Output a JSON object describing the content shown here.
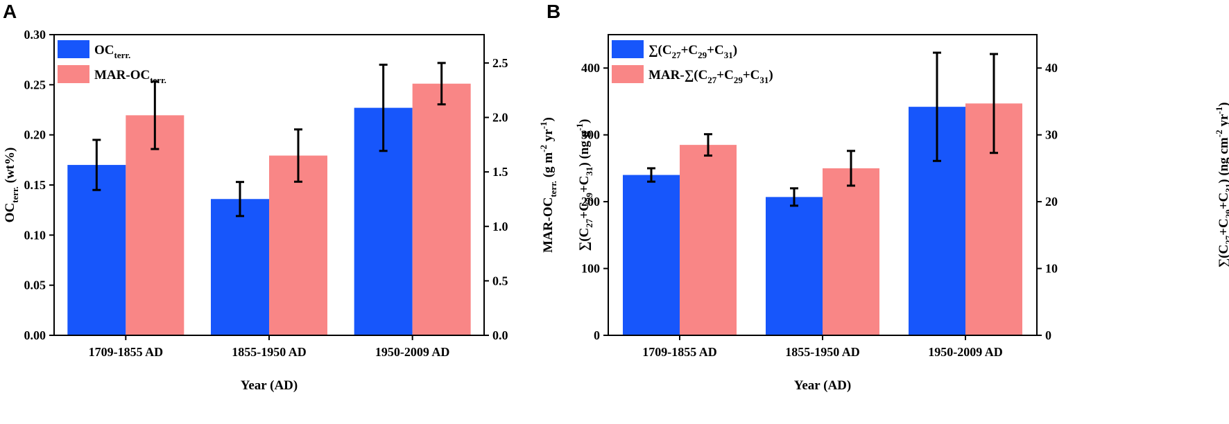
{
  "chart_data": [
    {
      "panel": "A",
      "type": "bar",
      "xlabel": "Year (AD)",
      "categories": [
        "1709-1855 AD",
        "1855-1950 AD",
        "1950-2009 AD"
      ],
      "ylabel": {
        "main": "OC",
        "sub": "terr.",
        "tail": " (wt%)"
      },
      "ylabel_right": {
        "main": "MAR-OC",
        "sub": "terr.",
        "tail": " (g m",
        "sup1": "-2",
        "tail2": " yr",
        "sup2": "-1",
        "end": ")"
      },
      "ylim": [
        0,
        0.3
      ],
      "yticks": [
        "0.00",
        "0.05",
        "0.10",
        "0.15",
        "0.20",
        "0.25",
        "0.30"
      ],
      "ylim_right": [
        0,
        2.76
      ],
      "yticks_right": [
        "0.0",
        "0.5",
        "1.0",
        "1.5",
        "2.0",
        "2.5"
      ],
      "series": [
        {
          "name": "OC",
          "legend_sub": "terr.",
          "axis": "left",
          "color": "#1756fb",
          "values": [
            0.17,
            0.136,
            0.227
          ],
          "errors": [
            0.025,
            0.017,
            0.043
          ]
        },
        {
          "name": "MAR-OC",
          "legend_sub": "terr.",
          "axis": "right",
          "color": "#f98686",
          "values": [
            2.02,
            1.65,
            2.31
          ],
          "errors": [
            0.31,
            0.24,
            0.19
          ]
        }
      ]
    },
    {
      "panel": "B",
      "type": "bar",
      "xlabel": "Year (AD)",
      "categories": [
        "1709-1855 AD",
        "1855-1950 AD",
        "1950-2009 AD"
      ],
      "ylabel": "∑(C27+C29+C31) (ng g-1)",
      "ylabel_right": "∑(C27+C29+C31) (ng cm-2 yr-1)",
      "ylim": [
        0,
        450
      ],
      "yticks": [
        "0",
        "100",
        "200",
        "300",
        "400"
      ],
      "ylim_right": [
        0,
        45
      ],
      "yticks_right": [
        "0",
        "10",
        "20",
        "30",
        "40"
      ],
      "series": [
        {
          "name": "∑(C27+C29+C31)",
          "axis": "left",
          "color": "#1756fb",
          "values": [
            240,
            207,
            342
          ],
          "errors": [
            10,
            13,
            81
          ]
        },
        {
          "name": "MAR-∑(C27+C29+C31)",
          "axis": "right",
          "color": "#f98686",
          "values": [
            28.5,
            25.0,
            34.7
          ],
          "errors": [
            1.6,
            2.6,
            7.4
          ]
        }
      ]
    }
  ]
}
